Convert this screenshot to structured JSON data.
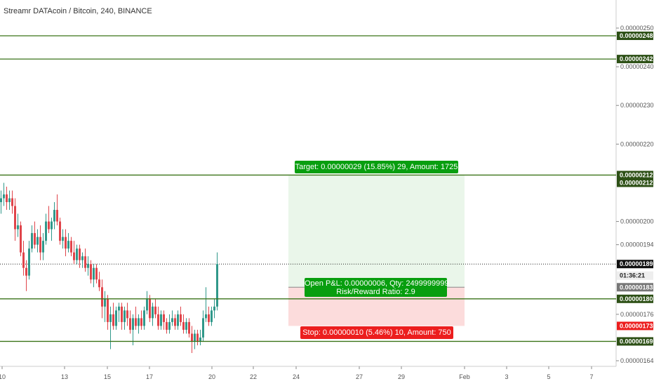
{
  "title": "Streamr DATAcoin / Bitcoin, 240, BINANCE",
  "colors": {
    "up": "#30988a",
    "down": "#e0444a",
    "level_line": "#3a7318",
    "level_tag": "#2d5016",
    "target_fill": "#eaf6ea",
    "stop_fill": "#fcdcdc",
    "target_box": "#089e0f",
    "stop_box": "#ec1e1e",
    "last_price_tag": "#111111",
    "timer_tag": "#eeeeee",
    "gray_tag": "#777777"
  },
  "price_axis": {
    "ticks": [
      "0.00000250",
      "0.00000240",
      "0.00000230",
      "0.00000220",
      "0.00000200",
      "0.00000194",
      "0.00000176",
      "0.00000164"
    ],
    "tick_values": [
      2.5e-06,
      2.4e-06,
      2.3e-06,
      2.2e-06,
      2e-06,
      1.94e-06,
      1.76e-06,
      1.64e-06
    ],
    "tags": [
      {
        "label": "0.00000248",
        "value": 2.48e-06,
        "style": "level"
      },
      {
        "label": "0.00000242",
        "value": 2.42e-06,
        "style": "level"
      },
      {
        "label": "0.00000212",
        "value": 2.12e-06,
        "style": "level"
      },
      {
        "label": "0.00000212",
        "value": 2.1e-06,
        "style": "level"
      },
      {
        "label": "0.00000189",
        "value": 1.89e-06,
        "style": "last"
      },
      {
        "label": "01:36:21",
        "value": 1.86e-06,
        "style": "timer"
      },
      {
        "label": "0.00000183",
        "value": 1.83e-06,
        "style": "gray"
      },
      {
        "label": "0.00000180",
        "value": 1.8e-06,
        "style": "level"
      },
      {
        "label": "0.00000173",
        "value": 1.73e-06,
        "style": "stop"
      },
      {
        "label": "0.00000169",
        "value": 1.69e-06,
        "style": "level"
      }
    ]
  },
  "time_axis": {
    "labels": [
      "10",
      "13",
      "15",
      "17",
      "20",
      "22",
      "24",
      "27",
      "29",
      "Feb",
      "3",
      "5",
      "7"
    ]
  },
  "levels": [
    2.48e-06,
    2.42e-06,
    2.12e-06,
    1.8e-06,
    1.69e-06
  ],
  "last_price": 1.89e-06,
  "position": {
    "entry": 1.83e-06,
    "target": 2.12e-06,
    "stop": 1.73e-06,
    "target_label": "Target: 0.00000029 (15.85%) 29, Amount: 1725",
    "pnl_label": "Open P&L: 0.00000006, Qty: 2499999999",
    "rr_label": "Risk/Reward Ratio: 2.9",
    "stop_label": "Stop: 0.00000010 (5.46%) 10, Amount: 750"
  },
  "chart_data": {
    "type": "candlestick",
    "title": "Streamr DATAcoin / Bitcoin, 240, BINANCE",
    "ohlc": [
      [
        2.05e-06,
        2.08e-06,
        2.02e-06,
        2.06e-06
      ],
      [
        2.06e-06,
        2.1e-06,
        2.04e-06,
        2.07e-06
      ],
      [
        2.07e-06,
        2.09e-06,
        2.03e-06,
        2.05e-06
      ],
      [
        2.05e-06,
        2.08e-06,
        2.03e-06,
        2.06e-06
      ],
      [
        2.06e-06,
        2.08e-06,
        2.02e-06,
        2.04e-06
      ],
      [
        2.04e-06,
        2.06e-06,
        1.95e-06,
        1.98e-06
      ],
      [
        1.98e-06,
        2.02e-06,
        1.96e-06,
        1.99e-06
      ],
      [
        1.99e-06,
        2e-06,
        1.91e-06,
        1.92e-06
      ],
      [
        1.92e-06,
        1.95e-06,
        1.86e-06,
        1.88e-06
      ],
      [
        1.88e-06,
        1.9e-06,
        1.82e-06,
        1.86e-06
      ],
      [
        1.86e-06,
        1.95e-06,
        1.85e-06,
        1.93e-06
      ],
      [
        1.93e-06,
        1.99e-06,
        1.92e-06,
        1.97e-06
      ],
      [
        1.97e-06,
        2e-06,
        1.93e-06,
        1.94e-06
      ],
      [
        1.94e-06,
        1.98e-06,
        1.92e-06,
        1.96e-06
      ],
      [
        1.96e-06,
        1.99e-06,
        1.9e-06,
        1.92e-06
      ],
      [
        1.92e-06,
        1.97e-06,
        1.9e-06,
        1.95e-06
      ],
      [
        1.95e-06,
        2.02e-06,
        1.94e-06,
        2e-06
      ],
      [
        2e-06,
        2.04e-06,
        1.97e-06,
        1.98e-06
      ],
      [
        1.98e-06,
        2.01e-06,
        1.95e-06,
        2e-06
      ],
      [
        2e-06,
        2.05e-06,
        1.98e-06,
        2.03e-06
      ],
      [
        2.03e-06,
        2.07e-06,
        1.99e-06,
        2e-06
      ],
      [
        2e-06,
        2.01e-06,
        1.94e-06,
        1.95e-06
      ],
      [
        1.95e-06,
        1.98e-06,
        1.93e-06,
        1.96e-06
      ],
      [
        1.96e-06,
        1.98e-06,
        1.91e-06,
        1.93e-06
      ],
      [
        1.93e-06,
        1.97e-06,
        1.92e-06,
        1.95e-06
      ],
      [
        1.95e-06,
        1.96e-06,
        1.91e-06,
        1.92e-06
      ],
      [
        1.92e-06,
        1.95e-06,
        1.89e-06,
        1.9e-06
      ],
      [
        1.9e-06,
        1.94e-06,
        1.89e-06,
        1.93e-06
      ],
      [
        1.93e-06,
        1.94e-06,
        1.88e-06,
        1.9e-06
      ],
      [
        1.9e-06,
        1.92e-06,
        1.88e-06,
        1.91e-06
      ],
      [
        1.91e-06,
        1.93e-06,
        1.87e-06,
        1.88e-06
      ],
      [
        1.88e-06,
        1.91e-06,
        1.86e-06,
        1.89e-06
      ],
      [
        1.89e-06,
        1.9e-06,
        1.84e-06,
        1.85e-06
      ],
      [
        1.85e-06,
        1.89e-06,
        1.83e-06,
        1.88e-06
      ],
      [
        1.88e-06,
        1.89e-06,
        1.84e-06,
        1.85e-06
      ],
      [
        1.85e-06,
        1.87e-06,
        1.82e-06,
        1.83e-06
      ],
      [
        1.83e-06,
        1.85e-06,
        1.75e-06,
        1.78e-06
      ],
      [
        1.78e-06,
        1.82e-06,
        1.74e-06,
        1.8e-06
      ],
      [
        1.8e-06,
        1.81e-06,
        1.72e-06,
        1.74e-06
      ],
      [
        1.74e-06,
        1.78e-06,
        1.67e-06,
        1.76e-06
      ],
      [
        1.76e-06,
        1.79e-06,
        1.72e-06,
        1.73e-06
      ],
      [
        1.73e-06,
        1.78e-06,
        1.72e-06,
        1.77e-06
      ],
      [
        1.77e-06,
        1.79e-06,
        1.74e-06,
        1.78e-06
      ],
      [
        1.78e-06,
        1.79e-06,
        1.72e-06,
        1.74e-06
      ],
      [
        1.74e-06,
        1.78e-06,
        1.72e-06,
        1.77e-06
      ],
      [
        1.77e-06,
        1.79e-06,
        1.73e-06,
        1.75e-06
      ],
      [
        1.75e-06,
        1.77e-06,
        1.71e-06,
        1.72e-06
      ],
      [
        1.72e-06,
        1.76e-06,
        1.68e-06,
        1.75e-06
      ],
      [
        1.75e-06,
        1.78e-06,
        1.72e-06,
        1.73e-06
      ],
      [
        1.73e-06,
        1.76e-06,
        1.71e-06,
        1.75e-06
      ],
      [
        1.75e-06,
        1.77e-06,
        1.72e-06,
        1.73e-06
      ],
      [
        1.73e-06,
        1.78e-06,
        1.72e-06,
        1.77e-06
      ],
      [
        1.77e-06,
        1.82e-06,
        1.76e-06,
        1.8e-06
      ],
      [
        1.8e-06,
        1.81e-06,
        1.74e-06,
        1.75e-06
      ],
      [
        1.75e-06,
        1.79e-06,
        1.73e-06,
        1.78e-06
      ],
      [
        1.78e-06,
        1.8e-06,
        1.75e-06,
        1.76e-06
      ],
      [
        1.76e-06,
        1.78e-06,
        1.72e-06,
        1.73e-06
      ],
      [
        1.73e-06,
        1.77e-06,
        1.72e-06,
        1.76e-06
      ],
      [
        1.76e-06,
        1.77e-06,
        1.72e-06,
        1.74e-06
      ],
      [
        1.74e-06,
        1.75e-06,
        1.71e-06,
        1.72e-06
      ],
      [
        1.72e-06,
        1.76e-06,
        1.71e-06,
        1.74e-06
      ],
      [
        1.74e-06,
        1.77e-06,
        1.73e-06,
        1.75e-06
      ],
      [
        1.75e-06,
        1.76e-06,
        1.72e-06,
        1.73e-06
      ],
      [
        1.73e-06,
        1.77e-06,
        1.72e-06,
        1.76e-06
      ],
      [
        1.76e-06,
        1.78e-06,
        1.73e-06,
        1.74e-06
      ],
      [
        1.74e-06,
        1.76e-06,
        1.71e-06,
        1.72e-06
      ],
      [
        1.72e-06,
        1.75e-06,
        1.71e-06,
        1.74e-06
      ],
      [
        1.74e-06,
        1.75e-06,
        1.7e-06,
        1.71e-06
      ],
      [
        1.71e-06,
        1.73e-06,
        1.66e-06,
        1.69e-06
      ],
      [
        1.69e-06,
        1.72e-06,
        1.67e-06,
        1.71e-06
      ],
      [
        1.71e-06,
        1.72e-06,
        1.68e-06,
        1.69e-06
      ],
      [
        1.69e-06,
        1.72e-06,
        1.68e-06,
        1.7e-06
      ],
      [
        1.7e-06,
        1.77e-06,
        1.69e-06,
        1.75e-06
      ],
      [
        1.75e-06,
        1.83e-06,
        1.74e-06,
        1.76e-06
      ],
      [
        1.76e-06,
        1.78e-06,
        1.73e-06,
        1.74e-06
      ],
      [
        1.74e-06,
        1.78e-06,
        1.73e-06,
        1.77e-06
      ],
      [
        1.77e-06,
        1.8e-06,
        1.75e-06,
        1.78e-06
      ],
      [
        1.78e-06,
        1.92e-06,
        1.77e-06,
        1.89e-06
      ]
    ]
  }
}
